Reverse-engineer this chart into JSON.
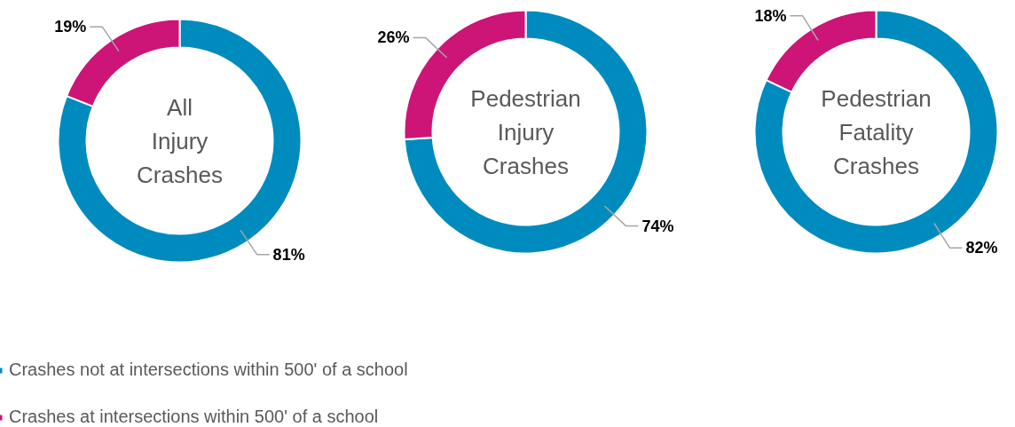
{
  "chart_data": [
    {
      "type": "donut",
      "title": "All Injury Crashes",
      "categories": [
        "Crashes not at intersections within 500' of a school",
        "Crashes at intersections within 500' of a school"
      ],
      "values": [
        81,
        19
      ],
      "colors": [
        "#008bbf",
        "#cc1577"
      ],
      "value_labels": [
        "81%",
        "19%"
      ],
      "legend": "bottom"
    },
    {
      "type": "donut",
      "title": "Pedestrian Injury Crashes",
      "categories": [
        null,
        null
      ],
      "values": [
        74,
        26
      ],
      "colors": [
        "#008bbf",
        "#cc1577"
      ],
      "value_labels": [
        "74%",
        "26%"
      ]
    },
    {
      "type": "donut",
      "title": "Pedestrian Fatality Crashes",
      "categories": [
        null,
        null
      ],
      "values": [
        82,
        18
      ],
      "colors": [
        "#008bbf",
        "#cc1577"
      ],
      "value_labels": [
        "82%",
        "18%"
      ]
    }
  ]
}
